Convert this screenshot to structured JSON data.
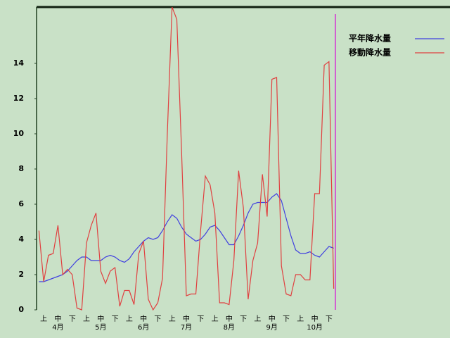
{
  "chart_data": {
    "type": "line",
    "categories": [
      null,
      "上",
      null,
      null,
      "中",
      null,
      null,
      "下",
      null,
      null,
      "上",
      null,
      null,
      "中",
      null,
      null,
      "下",
      null,
      null,
      "上",
      null,
      null,
      "中",
      null,
      null,
      "下",
      null,
      null,
      "上",
      null,
      null,
      "中",
      null,
      null,
      "下",
      null,
      null,
      "上",
      null,
      null,
      "中",
      null,
      null,
      "下",
      null,
      null,
      "上",
      null,
      null,
      "中",
      null,
      null,
      "下",
      null,
      null,
      "上",
      null,
      null,
      "中",
      null,
      null,
      "下",
      null
    ],
    "month_labels": [
      "4月",
      "5月",
      "6月",
      "7月",
      "8月",
      "9月",
      "10月"
    ],
    "series": [
      {
        "name": "平年降水量",
        "color": "#4040e0",
        "values": [
          1.6,
          1.6,
          1.7,
          1.8,
          1.9,
          2.0,
          2.2,
          2.5,
          2.8,
          3.0,
          3.0,
          2.8,
          2.8,
          2.8,
          3.0,
          3.1,
          3.0,
          2.8,
          2.7,
          2.9,
          3.3,
          3.6,
          3.9,
          4.1,
          4.0,
          4.1,
          4.5,
          5.0,
          5.4,
          5.2,
          4.7,
          4.3,
          4.1,
          3.9,
          4.0,
          4.3,
          4.7,
          4.8,
          4.5,
          4.1,
          3.7,
          3.7,
          4.2,
          4.8,
          5.5,
          6.0,
          6.1,
          6.1,
          6.1,
          6.4,
          6.6,
          6.2,
          5.2,
          4.2,
          3.4,
          3.2,
          3.2,
          3.3,
          3.1,
          3.0,
          3.3,
          3.6,
          3.5
        ]
      },
      {
        "name": "移動降水量",
        "color": "#e04040",
        "values": [
          4.5,
          1.6,
          3.1,
          3.2,
          4.8,
          2.0,
          2.3,
          2.0,
          0.1,
          0,
          3.8,
          4.8,
          5.5,
          2.2,
          1.5,
          2.2,
          2.4,
          0.2,
          1.1,
          1.1,
          0.3,
          3.2,
          3.9,
          0.6,
          0,
          0.4,
          1.8,
          10,
          17.2,
          16.5,
          9.0,
          0.8,
          0.9,
          0.9,
          4.5,
          7.6,
          7.1,
          5.5,
          0.4,
          0.4,
          0.3,
          2.8,
          7.9,
          5.8,
          0.6,
          2.8,
          3.8,
          7.7,
          5.3,
          13.1,
          13.2,
          2.5,
          0.9,
          0.8,
          2.0,
          2.0,
          1.7,
          1.7,
          6.6,
          6.6,
          13.9,
          14.1,
          1.2
        ]
      }
    ],
    "ylim": [
      0,
      17.2
    ],
    "yticks": [
      0,
      2,
      4,
      6,
      8,
      10,
      12,
      14
    ]
  }
}
